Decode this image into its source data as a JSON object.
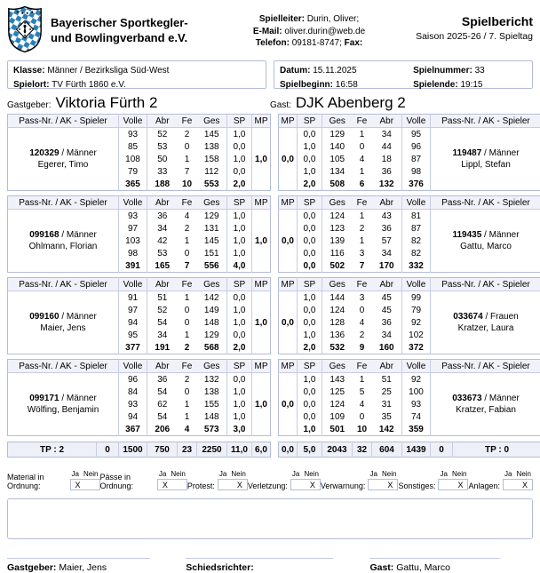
{
  "header": {
    "org_name_line1": "Bayerischer Sportkegler-",
    "org_name_line2": "und Bowlingverband e.V.",
    "logo_icon": "bskv-shield-logo",
    "logo_blue": "#2a80b8",
    "contact": {
      "l1_label": "Spielleiter:",
      "l1_value": "Durin, Oliver;",
      "l2_label": "E-Mail:",
      "l2_value": "oliver.durin@web.de",
      "l3_label": "Telefon:",
      "l3_value": "09181-8747;",
      "l3_label2": "Fax:"
    },
    "report_title": "Spielbericht",
    "report_subtitle": "Saison 2025-26 / 7. Spieltag"
  },
  "info": {
    "klasse_label": "Klasse:",
    "klasse": "Männer / Bezirksliga Süd-West",
    "spielort_label": "Spielort:",
    "spielort": "TV Fürth 1860 e.V.",
    "datum_label": "Datum:",
    "datum": "15.11.2025",
    "spielnummer_label": "Spielnummer:",
    "spielnummer": "33",
    "spielbeginn_label": "Spielbeginn:",
    "spielbeginn": "16:58",
    "spielende_label": "Spielende:",
    "spielende": "19:15"
  },
  "teams": {
    "home_label": "Gastgeber:",
    "home_name": "Viktoria Fürth 2",
    "guest_label": "Gast:",
    "guest_name": "DJK Abenberg 2"
  },
  "table": {
    "home_headers": [
      "Pass-Nr. / AK - Spieler",
      "Volle",
      "Abr",
      "Fe",
      "Ges",
      "SP",
      "MP"
    ],
    "guest_headers": [
      "MP",
      "SP",
      "Ges",
      "Fe",
      "Abr",
      "Volle",
      "Pass-Nr. / AK - Spieler"
    ],
    "ak_separator": " / "
  },
  "home_players": [
    {
      "pass": "120329",
      "ak": "Männer",
      "name": "Egerer, Timo",
      "mp": "1,0",
      "lanes": [
        {
          "volle": "93",
          "abr": "52",
          "fe": "2",
          "ges": "145",
          "sp": "1,0"
        },
        {
          "volle": "85",
          "abr": "53",
          "fe": "0",
          "ges": "138",
          "sp": "0,0"
        },
        {
          "volle": "108",
          "abr": "50",
          "fe": "1",
          "ges": "158",
          "sp": "1,0"
        },
        {
          "volle": "79",
          "abr": "33",
          "fe": "7",
          "ges": "112",
          "sp": "0,0"
        }
      ],
      "totals": {
        "volle": "365",
        "abr": "188",
        "fe": "10",
        "ges": "553",
        "sp": "2,0"
      }
    },
    {
      "pass": "099168",
      "ak": "Männer",
      "name": "Ohlmann, Florian",
      "mp": "1,0",
      "lanes": [
        {
          "volle": "93",
          "abr": "36",
          "fe": "4",
          "ges": "129",
          "sp": "1,0"
        },
        {
          "volle": "97",
          "abr": "34",
          "fe": "2",
          "ges": "131",
          "sp": "1,0"
        },
        {
          "volle": "103",
          "abr": "42",
          "fe": "1",
          "ges": "145",
          "sp": "1,0"
        },
        {
          "volle": "98",
          "abr": "53",
          "fe": "0",
          "ges": "151",
          "sp": "1,0"
        }
      ],
      "totals": {
        "volle": "391",
        "abr": "165",
        "fe": "7",
        "ges": "556",
        "sp": "4,0"
      }
    },
    {
      "pass": "099160",
      "ak": "Männer",
      "name": "Maier, Jens",
      "mp": "1,0",
      "lanes": [
        {
          "volle": "91",
          "abr": "51",
          "fe": "1",
          "ges": "142",
          "sp": "0,0"
        },
        {
          "volle": "97",
          "abr": "52",
          "fe": "0",
          "ges": "149",
          "sp": "1,0"
        },
        {
          "volle": "94",
          "abr": "54",
          "fe": "0",
          "ges": "148",
          "sp": "1,0"
        },
        {
          "volle": "95",
          "abr": "34",
          "fe": "1",
          "ges": "129",
          "sp": "0,0"
        }
      ],
      "totals": {
        "volle": "377",
        "abr": "191",
        "fe": "2",
        "ges": "568",
        "sp": "2,0"
      }
    },
    {
      "pass": "099171",
      "ak": "Männer",
      "name": "Wölfing, Benjamin",
      "mp": "1,0",
      "lanes": [
        {
          "volle": "96",
          "abr": "36",
          "fe": "2",
          "ges": "132",
          "sp": "0,0"
        },
        {
          "volle": "84",
          "abr": "54",
          "fe": "0",
          "ges": "138",
          "sp": "1,0"
        },
        {
          "volle": "93",
          "abr": "62",
          "fe": "1",
          "ges": "155",
          "sp": "1,0"
        },
        {
          "volle": "94",
          "abr": "54",
          "fe": "1",
          "ges": "148",
          "sp": "1,0"
        }
      ],
      "totals": {
        "volle": "367",
        "abr": "206",
        "fe": "4",
        "ges": "573",
        "sp": "3,0"
      }
    }
  ],
  "guest_players": [
    {
      "pass": "119487",
      "ak": "Männer",
      "name": "Lippl, Stefan",
      "mp": "0,0",
      "lanes": [
        {
          "volle": "95",
          "abr": "34",
          "fe": "1",
          "ges": "129",
          "sp": "0,0"
        },
        {
          "volle": "96",
          "abr": "44",
          "fe": "0",
          "ges": "140",
          "sp": "1,0"
        },
        {
          "volle": "87",
          "abr": "18",
          "fe": "4",
          "ges": "105",
          "sp": "0,0"
        },
        {
          "volle": "98",
          "abr": "36",
          "fe": "1",
          "ges": "134",
          "sp": "1,0"
        }
      ],
      "totals": {
        "volle": "376",
        "abr": "132",
        "fe": "6",
        "ges": "508",
        "sp": "2,0"
      }
    },
    {
      "pass": "119435",
      "ak": "Männer",
      "name": "Gattu, Marco",
      "mp": "0,0",
      "lanes": [
        {
          "volle": "81",
          "abr": "43",
          "fe": "1",
          "ges": "124",
          "sp": "0,0"
        },
        {
          "volle": "87",
          "abr": "36",
          "fe": "2",
          "ges": "123",
          "sp": "0,0"
        },
        {
          "volle": "82",
          "abr": "57",
          "fe": "1",
          "ges": "139",
          "sp": "0,0"
        },
        {
          "volle": "82",
          "abr": "34",
          "fe": "3",
          "ges": "116",
          "sp": "0,0"
        }
      ],
      "totals": {
        "volle": "332",
        "abr": "170",
        "fe": "7",
        "ges": "502",
        "sp": "0,0"
      }
    },
    {
      "pass": "033674",
      "ak": "Frauen",
      "name": "Kratzer, Laura",
      "mp": "0,0",
      "lanes": [
        {
          "volle": "99",
          "abr": "45",
          "fe": "3",
          "ges": "144",
          "sp": "1,0"
        },
        {
          "volle": "79",
          "abr": "45",
          "fe": "0",
          "ges": "124",
          "sp": "0,0"
        },
        {
          "volle": "92",
          "abr": "36",
          "fe": "4",
          "ges": "128",
          "sp": "0,0"
        },
        {
          "volle": "102",
          "abr": "34",
          "fe": "2",
          "ges": "136",
          "sp": "1,0"
        }
      ],
      "totals": {
        "volle": "372",
        "abr": "160",
        "fe": "9",
        "ges": "532",
        "sp": "2,0"
      }
    },
    {
      "pass": "033673",
      "ak": "Männer",
      "name": "Kratzer, Fabian",
      "mp": "0,0",
      "lanes": [
        {
          "volle": "92",
          "abr": "51",
          "fe": "1",
          "ges": "143",
          "sp": "1,0"
        },
        {
          "volle": "100",
          "abr": "25",
          "fe": "5",
          "ges": "125",
          "sp": "0,0"
        },
        {
          "volle": "93",
          "abr": "31",
          "fe": "4",
          "ges": "124",
          "sp": "0,0"
        },
        {
          "volle": "74",
          "abr": "35",
          "fe": "0",
          "ges": "109",
          "sp": "0,0"
        }
      ],
      "totals": {
        "volle": "359",
        "abr": "142",
        "fe": "10",
        "ges": "501",
        "sp": "1,0"
      }
    }
  ],
  "team_totals": {
    "home": {
      "tp": "TP : 2",
      "extra": "0",
      "volle": "1500",
      "abr": "750",
      "fe": "23",
      "ges": "2250",
      "sp": "11,0",
      "mp": "6,0"
    },
    "guest": {
      "mp": "0,0",
      "sp": "5,0",
      "ges": "2043",
      "fe": "32",
      "abr": "604",
      "volle": "1439",
      "extra": "0",
      "tp": "TP : 0"
    }
  },
  "checks": {
    "ja_label": "Ja",
    "nein_label": "Nein",
    "mark": "X",
    "items": [
      {
        "label": "Material in Ordnung:",
        "value": "ja"
      },
      {
        "label": "Pässe in Ordnung:",
        "value": "ja"
      },
      {
        "label": "Protest:",
        "value": "nein"
      },
      {
        "label": "Verletzung:",
        "value": "nein"
      },
      {
        "label": "Verwarnung:",
        "value": "nein"
      },
      {
        "label": "Sonstiges:",
        "value": "nein"
      },
      {
        "label": "Anlagen:",
        "value": "nein"
      }
    ]
  },
  "footer": {
    "home_label": "Gastgeber:",
    "home_signer": "Maier, Jens",
    "referee_label": "Schiedsrichter:",
    "referee_signer": "",
    "guest_label": "Gast:",
    "guest_signer": "Gattu, Marco"
  }
}
